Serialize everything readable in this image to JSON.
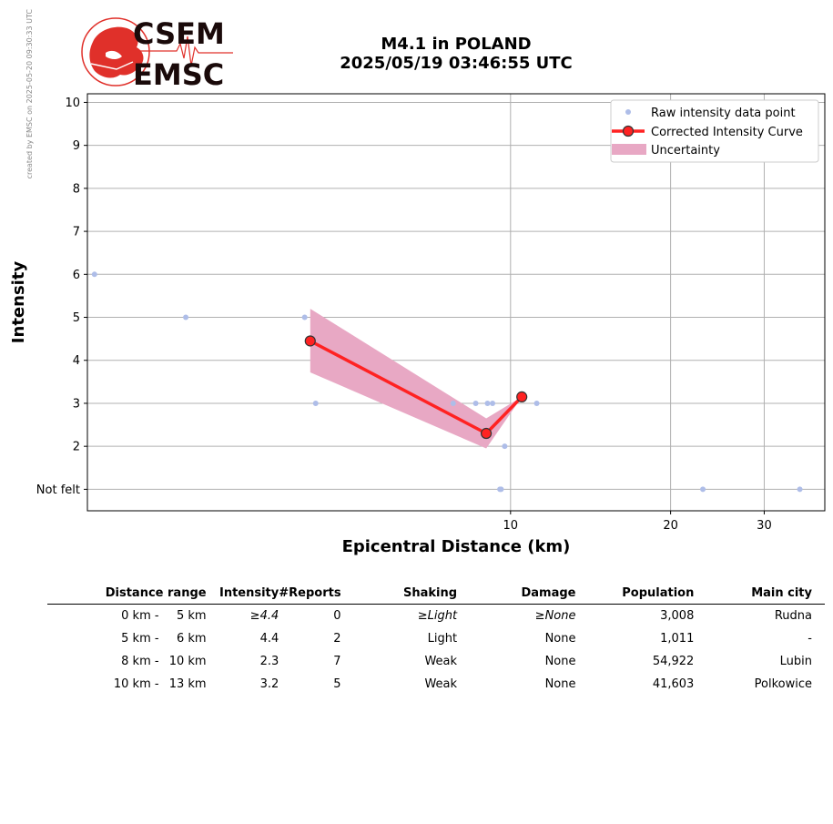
{
  "header": {
    "stamp": "created by EMSC on 2025-05-20 09:30:33 UTC",
    "logo_top": "CSEM",
    "logo_bottom": "EMSC",
    "title_line1": "M4.1 in POLAND",
    "title_line2": "2025/05/19 03:46:55 UTC"
  },
  "chart_data": {
    "type": "scatter",
    "x_scale": "log",
    "xlabel": "Epicentral Distance (km)",
    "ylabel": "Intensity",
    "xlim": [
      1.6,
      39
    ],
    "ylim": [
      0.5,
      10.2
    ],
    "x_ticks": [
      {
        "value": 10,
        "label": "10"
      },
      {
        "value": 20,
        "label": "20"
      },
      {
        "value": 30,
        "label": "30"
      }
    ],
    "y_ticks": [
      {
        "value": 1,
        "label": "Not felt"
      },
      {
        "value": 2,
        "label": "2"
      },
      {
        "value": 3,
        "label": "3"
      },
      {
        "value": 4,
        "label": "4"
      },
      {
        "value": 5,
        "label": "5"
      },
      {
        "value": 6,
        "label": "6"
      },
      {
        "value": 7,
        "label": "7"
      },
      {
        "value": 8,
        "label": "8"
      },
      {
        "value": 9,
        "label": "9"
      },
      {
        "value": 10,
        "label": "10"
      }
    ],
    "grid": true,
    "legend_position": "top-right",
    "legend": [
      "Raw intensity data point",
      "Corrected Intensity Curve",
      "Uncertainty"
    ],
    "colors": {
      "raw": "#aebde8",
      "curve": "#ff2222",
      "marker_edge": "#333333",
      "uncertainty": "#e8a8c4"
    },
    "raw_points": [
      {
        "x": 1.65,
        "y": 6
      },
      {
        "x": 2.45,
        "y": 5
      },
      {
        "x": 4.1,
        "y": 5
      },
      {
        "x": 4.3,
        "y": 3
      },
      {
        "x": 7.8,
        "y": 3
      },
      {
        "x": 8.6,
        "y": 3
      },
      {
        "x": 9.05,
        "y": 3
      },
      {
        "x": 9.25,
        "y": 3
      },
      {
        "x": 9.55,
        "y": 1
      },
      {
        "x": 9.6,
        "y": 1
      },
      {
        "x": 9.75,
        "y": 2
      },
      {
        "x": 11.2,
        "y": 3
      },
      {
        "x": 23.0,
        "y": 1
      },
      {
        "x": 35.0,
        "y": 1
      }
    ],
    "curve": [
      {
        "x": 4.2,
        "y": 4.45
      },
      {
        "x": 9.0,
        "y": 2.3
      },
      {
        "x": 10.5,
        "y": 3.15
      }
    ],
    "uncertainty_upper": [
      {
        "x": 4.2,
        "y": 5.2
      },
      {
        "x": 9.0,
        "y": 2.65
      },
      {
        "x": 10.5,
        "y": 3.15
      }
    ],
    "uncertainty_lower": [
      {
        "x": 4.2,
        "y": 3.72
      },
      {
        "x": 9.0,
        "y": 1.95
      },
      {
        "x": 10.5,
        "y": 3.15
      }
    ]
  },
  "table": {
    "headers": [
      "Distance range",
      "Intensity",
      "#Reports",
      "Shaking",
      "Damage",
      "Population",
      "Main city"
    ],
    "rows": [
      {
        "from": "0 km -",
        "to": "5 km",
        "intensity": "≥4.4",
        "reports": "0",
        "shaking": "≥Light",
        "damage": "≥None",
        "population": "3,008",
        "city": "Rudna",
        "italic": true
      },
      {
        "from": "5 km -",
        "to": "6 km",
        "intensity": "4.4",
        "reports": "2",
        "shaking": "Light",
        "damage": "None",
        "population": "1,011",
        "city": "-",
        "italic": false
      },
      {
        "from": "8 km -",
        "to": "10 km",
        "intensity": "2.3",
        "reports": "7",
        "shaking": "Weak",
        "damage": "None",
        "population": "54,922",
        "city": "Lubin",
        "italic": false
      },
      {
        "from": "10 km -",
        "to": "13 km",
        "intensity": "3.2",
        "reports": "5",
        "shaking": "Weak",
        "damage": "None",
        "population": "41,603",
        "city": "Polkowice",
        "italic": false
      }
    ]
  }
}
